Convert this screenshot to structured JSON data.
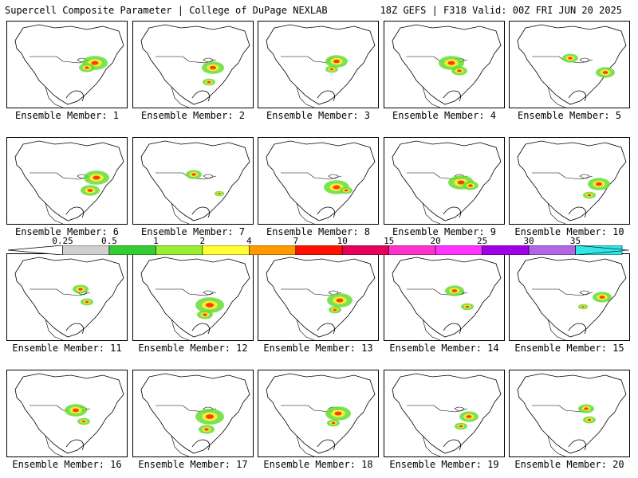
{
  "header": {
    "left_title": "Supercell Composite Parameter | College of DuPage NEXLAB",
    "right_title": "18Z GEFS | F318 Valid: 00Z FRI JUN 20 2025"
  },
  "colorbar": {
    "ticks": [
      "0.25",
      "0.5",
      "1",
      "2",
      "4",
      "7",
      "10",
      "15",
      "20",
      "25",
      "30",
      "35"
    ],
    "colors": [
      "#cfcfcf",
      "#33cc33",
      "#99ee33",
      "#ffff33",
      "#ff9900",
      "#ff1100",
      "#e6005c",
      "#ff33cc",
      "#ff33ff",
      "#a000e6",
      "#b266e6",
      "#33e6e6"
    ]
  },
  "panels": [
    {
      "label": "Ensemble Member: 1"
    },
    {
      "label": "Ensemble Member: 2"
    },
    {
      "label": "Ensemble Member: 3"
    },
    {
      "label": "Ensemble Member: 4"
    },
    {
      "label": "Ensemble Member: 5"
    },
    {
      "label": "Ensemble Member: 6"
    },
    {
      "label": "Ensemble Member: 7"
    },
    {
      "label": "Ensemble Member: 8"
    },
    {
      "label": "Ensemble Member: 9"
    },
    {
      "label": "Ensemble Member: 10"
    },
    {
      "label": "Ensemble Member: 11"
    },
    {
      "label": "Ensemble Member: 12"
    },
    {
      "label": "Ensemble Member: 13"
    },
    {
      "label": "Ensemble Member: 14"
    },
    {
      "label": "Ensemble Member: 15"
    },
    {
      "label": "Ensemble Member: 16"
    },
    {
      "label": "Ensemble Member: 17"
    },
    {
      "label": "Ensemble Member: 18"
    },
    {
      "label": "Ensemble Member: 19"
    },
    {
      "label": "Ensemble Member: 20"
    }
  ]
}
